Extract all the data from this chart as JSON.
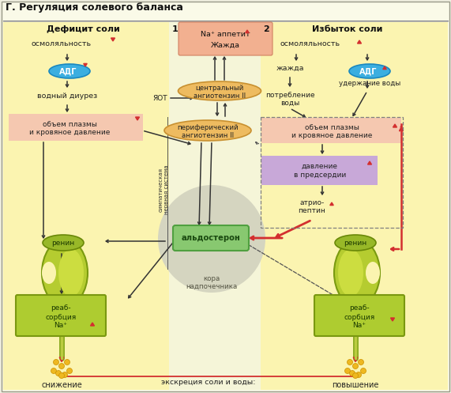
{
  "title": "Г. Регуляция солевого баланса",
  "bg_outer": "#F0EFE0",
  "bg_left": "#FDF5C0",
  "bg_right": "#FDF5C0",
  "bg_center": "#F8F8E8",
  "color_red": "#D32F2F",
  "color_dark": "#222222",
  "color_pink_box": "#F5C8B0",
  "color_salmon_top": "#F2A882",
  "color_blue_adg": "#3BAEE0",
  "color_green_kidney": "#B8D435",
  "color_green_dark": "#5A7A00",
  "color_orange_ellipse": "#E8A840",
  "color_purple_box": "#C8A8D8",
  "color_aldosteron_box": "#90C878",
  "color_gray_circle": "#D8D8C8",
  "left_title": "Дефицит соли",
  "right_title": "Избыток соли",
  "num1": "1",
  "num2": "2",
  "border_color": "#888888"
}
